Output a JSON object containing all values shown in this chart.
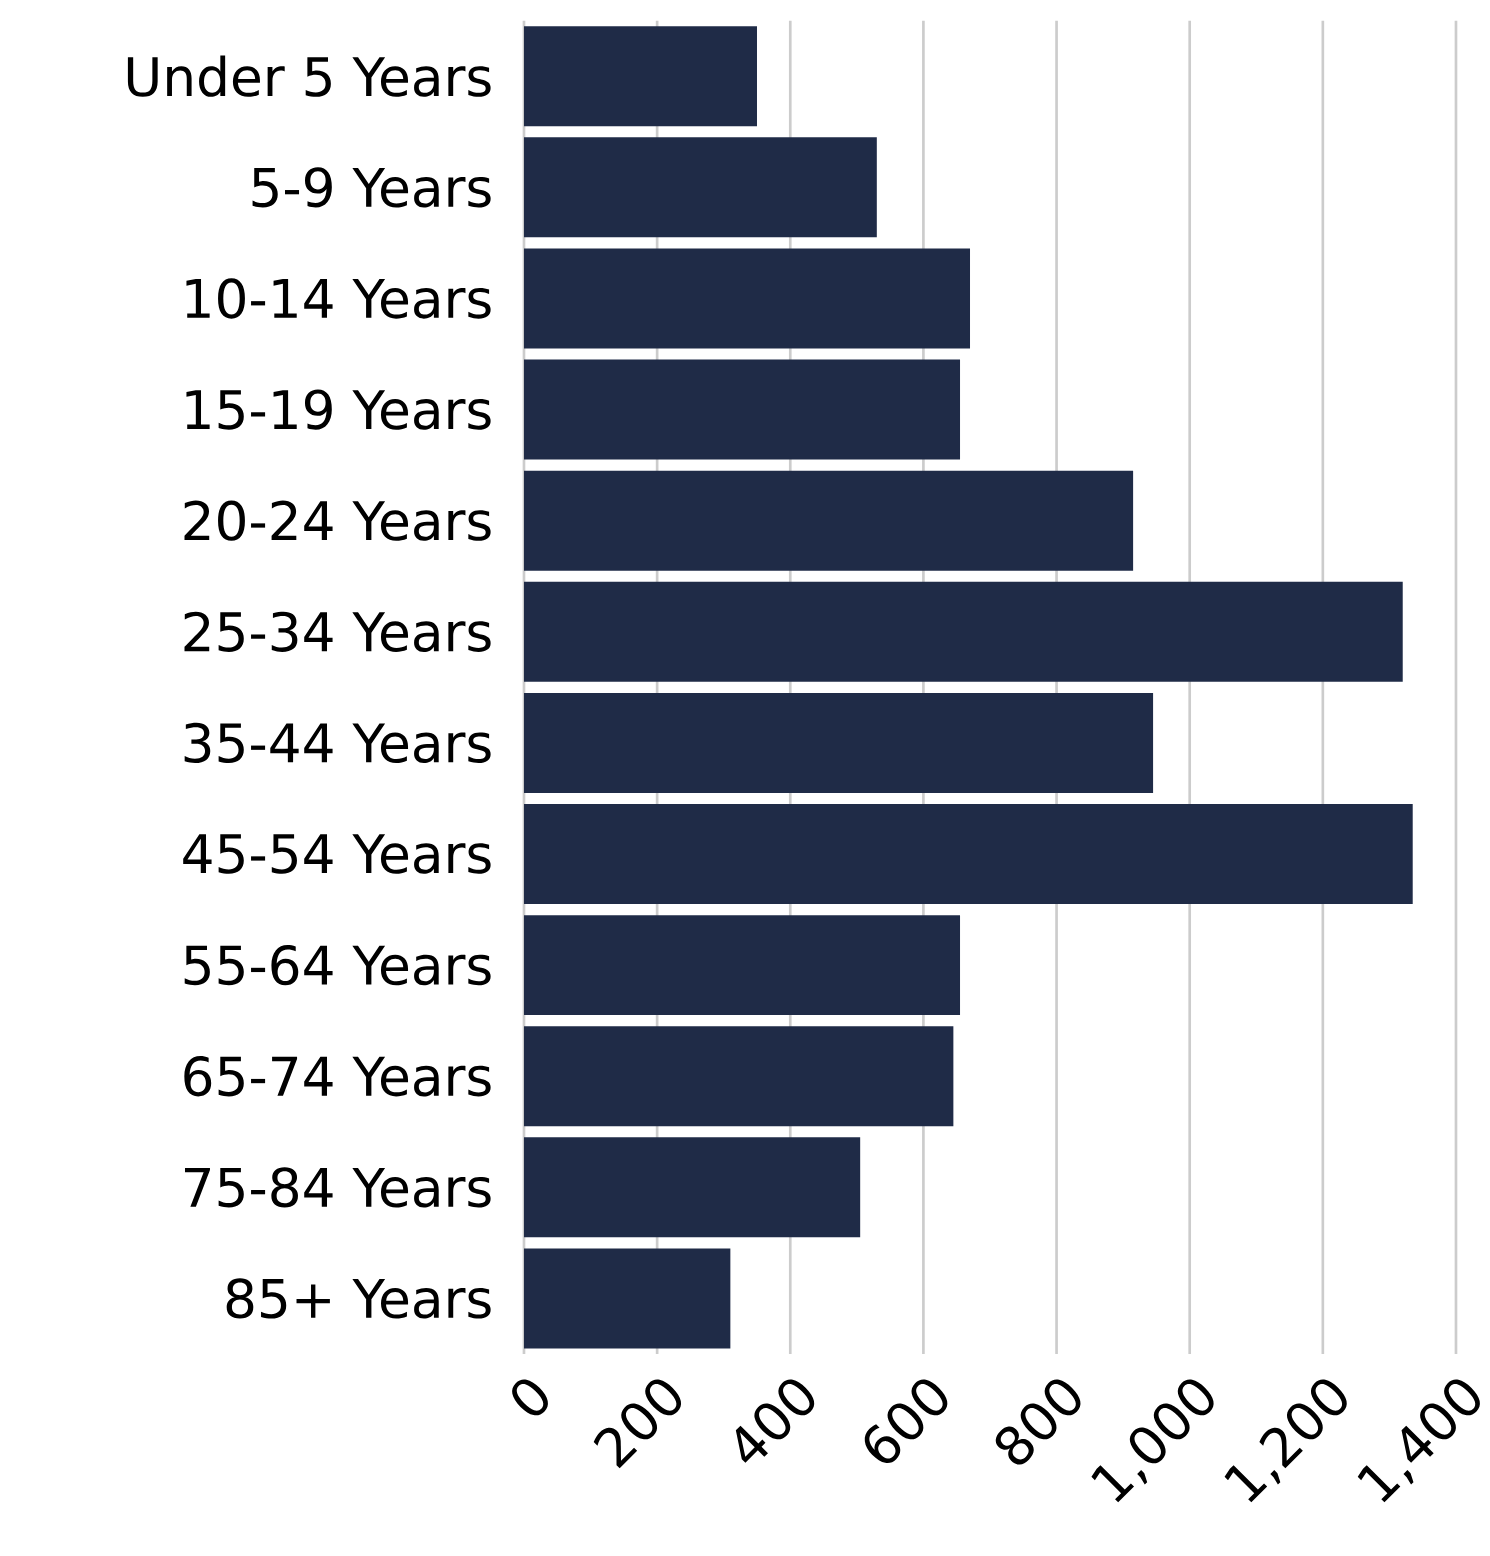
{
  "chart_data": {
    "type": "bar",
    "orientation": "horizontal",
    "categories": [
      "Under 5 Years",
      "5-9 Years",
      "10-14 Years",
      "15-19 Years",
      "20-24 Years",
      "25-34 Years",
      "35-44 Years",
      "45-54 Years",
      "55-64 Years",
      "65-74 Years",
      "75-84 Years",
      "85+ Years"
    ],
    "values": [
      350,
      530,
      670,
      655,
      915,
      1320,
      945,
      1335,
      655,
      645,
      505,
      310
    ],
    "color": "#1f2b47",
    "xlim": [
      0,
      1400
    ],
    "xticks": [
      0,
      200,
      400,
      600,
      800,
      {
        "value": 1000,
        "label": "1,000"
      },
      {
        "value": 1200,
        "label": "1,200"
      },
      {
        "value": 1400,
        "label": "1,400"
      }
    ],
    "grid": "x"
  }
}
